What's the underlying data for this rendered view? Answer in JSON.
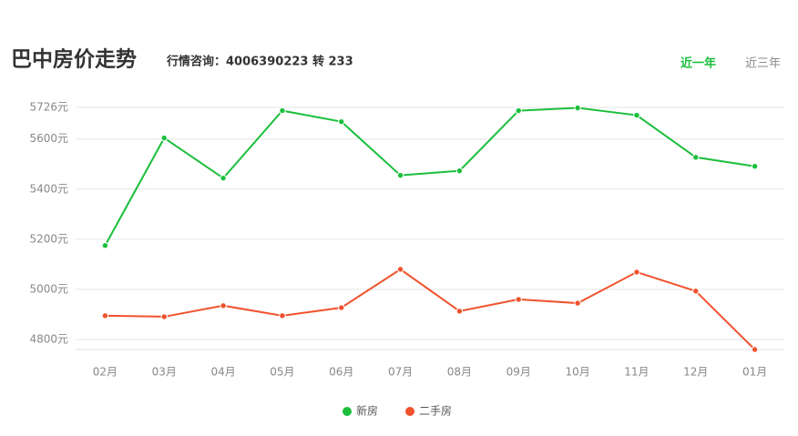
{
  "header": {
    "title": "巴中房价走势",
    "subtitle": "行情咨询：4006390223 转 233",
    "tabs": [
      "近一年",
      "近三年"
    ]
  },
  "chart_data": {
    "type": "line",
    "categories": [
      "02月",
      "03月",
      "04月",
      "05月",
      "06月",
      "07月",
      "08月",
      "09月",
      "10月",
      "11月",
      "12月",
      "01月"
    ],
    "series": [
      {
        "name": "新房",
        "color": "#1bbf3c",
        "values": [
          5175,
          5604,
          5444,
          5713,
          5669,
          5455,
          5473,
          5713,
          5724,
          5695,
          5527,
          5491
        ]
      },
      {
        "name": "二手房",
        "color": "#f0522d",
        "values": [
          4895,
          4891,
          4935,
          4895,
          4927,
          5080,
          4913,
          4960,
          4945,
          5069,
          4993,
          4760
        ]
      }
    ],
    "ylim": [
      4760,
      5726
    ],
    "yticks": [
      {
        "value": 4800,
        "label": "4800元"
      },
      {
        "value": 5000,
        "label": "5000元"
      },
      {
        "value": 5200,
        "label": "5200元"
      },
      {
        "value": 5400,
        "label": "5400元"
      },
      {
        "value": 5600,
        "label": "5600元"
      },
      {
        "value": 5726,
        "label": "5726元"
      }
    ],
    "grid": true
  }
}
